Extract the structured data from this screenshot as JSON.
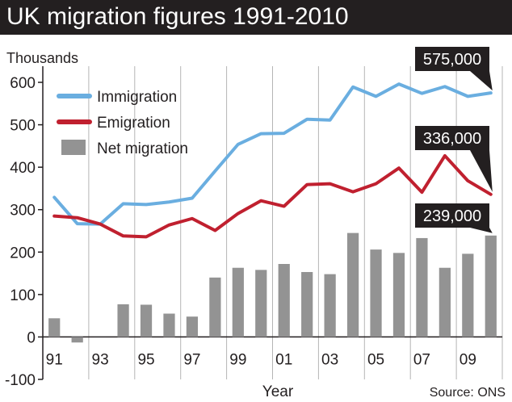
{
  "title": "UK migration figures 1991-2010",
  "unit_label": "Thousands",
  "source": "Source: ONS",
  "colors": {
    "immigration": "#6aaee0",
    "emigration": "#c0202f",
    "net_migration": "#939393",
    "title_bg": "#231f20",
    "callout_bg": "#231f20"
  },
  "chart_data": {
    "type": "bar+line",
    "title": "UK migration figures 1991-2010",
    "xlabel": "Year",
    "ylabel": "Thousands",
    "ylim": [
      -100,
      600
    ],
    "yticks": [
      -100,
      0,
      100,
      200,
      300,
      400,
      500,
      600
    ],
    "x": [
      1991,
      1992,
      1993,
      1994,
      1995,
      1996,
      1997,
      1998,
      1999,
      2000,
      2001,
      2002,
      2003,
      2004,
      2005,
      2006,
      2007,
      2008,
      2009,
      2010
    ],
    "xtick_labels": [
      "91",
      "93",
      "95",
      "97",
      "99",
      "01",
      "03",
      "05",
      "07",
      "09"
    ],
    "grid": "vertical",
    "legend_position": "top-left",
    "series": [
      {
        "name": "Immigration",
        "type": "line",
        "color": "#6aaee0",
        "values": [
          329,
          267,
          266,
          314,
          312,
          318,
          327,
          391,
          454,
          479,
          480,
          513,
          511,
          589,
          567,
          596,
          574,
          590,
          567,
          575
        ]
      },
      {
        "name": "Emigration",
        "type": "line",
        "color": "#c0202f",
        "values": [
          285,
          281,
          266,
          238,
          236,
          264,
          279,
          251,
          291,
          321,
          308,
          359,
          361,
          342,
          361,
          398,
          341,
          427,
          368,
          336
        ]
      },
      {
        "name": "Net migration",
        "type": "bar",
        "color": "#939393",
        "values": [
          44,
          -13,
          0,
          77,
          76,
          55,
          48,
          140,
          163,
          158,
          172,
          153,
          148,
          245,
          206,
          198,
          233,
          163,
          196,
          239
        ]
      }
    ],
    "annotations": [
      "575,000",
      "336,000",
      "239,000"
    ]
  }
}
